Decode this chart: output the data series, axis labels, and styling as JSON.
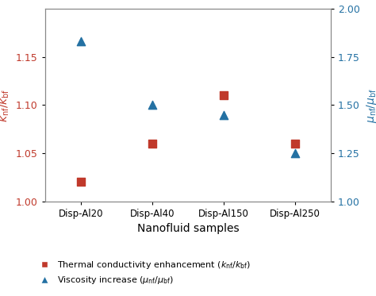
{
  "categories": [
    "Disp-Al20",
    "Disp-Al40",
    "Disp-Al150",
    "Disp-Al250"
  ],
  "thermal_conductivity": [
    1.02,
    1.06,
    1.11,
    1.06
  ],
  "viscosity": [
    1.83,
    1.5,
    1.45,
    1.25
  ],
  "left_ylim": [
    1.0,
    1.2
  ],
  "right_ylim": [
    1.0,
    2.0
  ],
  "left_yticks": [
    1.0,
    1.05,
    1.1,
    1.15
  ],
  "right_yticks": [
    1.0,
    1.25,
    1.5,
    1.75,
    2.0
  ],
  "xlabel": "Nanofluid samples",
  "red_color": "#C0392B",
  "blue_color": "#2471A3",
  "marker_size_sq": 45,
  "marker_size_tri": 55
}
